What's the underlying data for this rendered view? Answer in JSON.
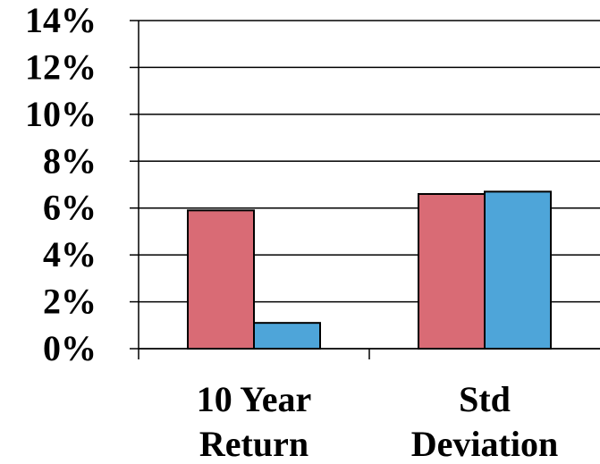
{
  "chart_data": {
    "type": "bar",
    "categories": [
      [
        "10 Year",
        "Return"
      ],
      [
        "Std",
        "Deviation"
      ]
    ],
    "series": [
      {
        "values": [
          5.9,
          6.6
        ],
        "color": "#d96b75"
      },
      {
        "values": [
          1.1,
          6.7
        ],
        "color": "#4ea5d9"
      }
    ],
    "y_ticks": [
      "0%",
      "2%",
      "4%",
      "6%",
      "8%",
      "10%",
      "12%",
      "14%"
    ],
    "ylim": [
      0,
      14
    ],
    "ytick_step": 2,
    "grid": true,
    "legend": "none"
  }
}
